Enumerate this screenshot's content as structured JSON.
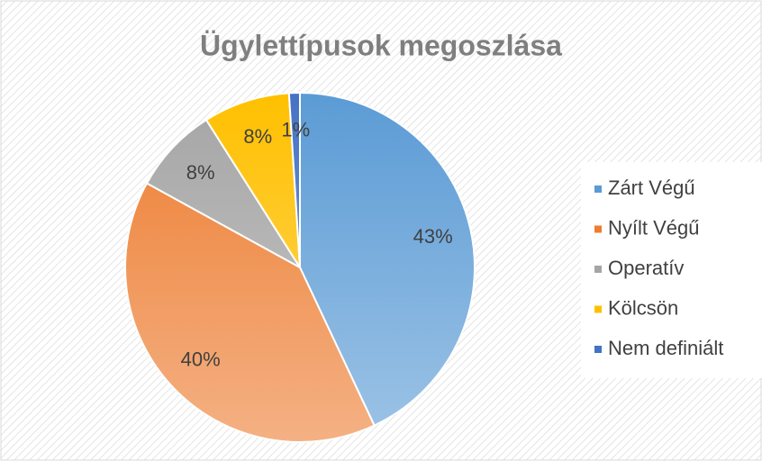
{
  "chart_data": {
    "type": "pie",
    "title": "Ügylettípusok megoszlása",
    "categories": [
      "Zárt Végű",
      "Nyílt Végű",
      "Operatív",
      "Kölcsön",
      "Nem definiált"
    ],
    "values": [
      43,
      40,
      8,
      8,
      1
    ],
    "value_labels": [
      "43%",
      "40%",
      "8%",
      "8%",
      "1%"
    ],
    "colors": [
      "#5b9bd5",
      "#ed7d31",
      "#a5a5a5",
      "#ffc000",
      "#4472c4"
    ],
    "legend": "right"
  }
}
